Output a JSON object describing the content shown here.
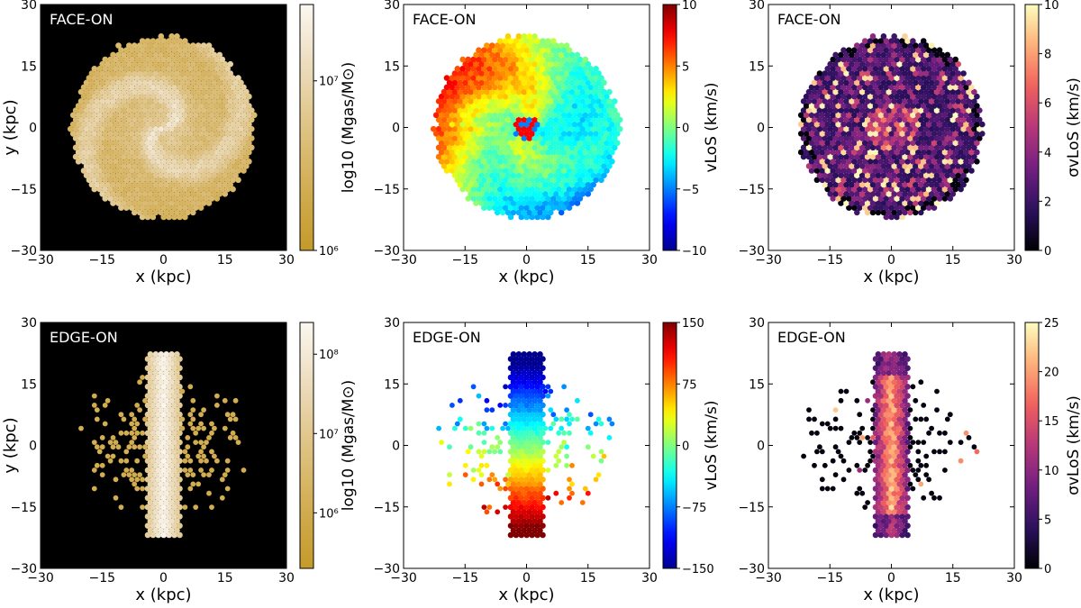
{
  "chart_data": [
    {
      "type": "heatmap",
      "quantity": "mass",
      "projection": "face-on",
      "label": "FACE-ON",
      "xlabel": "x (kpc)",
      "ylabel": "y (kpc)",
      "xlim": [
        -30,
        30
      ],
      "ylim": [
        -30,
        30
      ],
      "xticks": [
        "−30",
        "−15",
        "0",
        "15",
        "30"
      ],
      "yticks": [
        "30",
        "15",
        "0",
        "−15",
        "−30"
      ],
      "colorbar": {
        "label": "log10 (Mgas/M⊙)",
        "colormap": "gold-to-white",
        "range": [
          6.0,
          7.45
        ],
        "ticks": [
          {
            "text": "10⁷",
            "value": 7.0
          },
          {
            "text": "10⁶",
            "value": 6.0
          }
        ]
      }
    },
    {
      "type": "heatmap",
      "quantity": "velocity",
      "projection": "face-on",
      "label": "FACE-ON",
      "xlabel": "x (kpc)",
      "xlim": [
        -30,
        30
      ],
      "ylim": [
        -30,
        30
      ],
      "xticks": [
        "−30",
        "−15",
        "0",
        "15",
        "30"
      ],
      "yticks": [
        "30",
        "15",
        "0",
        "−15",
        "−30"
      ],
      "colorbar": {
        "label": "vLoS (km/s)",
        "colormap": "jet",
        "range": [
          -10,
          10
        ],
        "ticks": [
          {
            "text": "10",
            "value": 10
          },
          {
            "text": "5",
            "value": 5
          },
          {
            "text": "0",
            "value": 0
          },
          {
            "text": "−5",
            "value": -5
          },
          {
            "text": "−10",
            "value": -10
          }
        ]
      }
    },
    {
      "type": "heatmap",
      "quantity": "dispersion",
      "projection": "face-on",
      "label": "FACE-ON",
      "xlabel": "x (kpc)",
      "xlim": [
        -30,
        30
      ],
      "ylim": [
        -30,
        30
      ],
      "xticks": [
        "−30",
        "−15",
        "0",
        "15",
        "30"
      ],
      "yticks": [
        "30",
        "15",
        "0",
        "−15",
        "−30"
      ],
      "colorbar": {
        "label": "σvLoS (km/s)",
        "colormap": "magma",
        "range": [
          0,
          10
        ],
        "ticks": [
          {
            "text": "10",
            "value": 10
          },
          {
            "text": "8",
            "value": 8
          },
          {
            "text": "6",
            "value": 6
          },
          {
            "text": "4",
            "value": 4
          },
          {
            "text": "2",
            "value": 2
          },
          {
            "text": "0",
            "value": 0
          }
        ]
      }
    },
    {
      "type": "heatmap",
      "quantity": "mass",
      "projection": "edge-on",
      "label": "EDGE-ON",
      "xlabel": "x (kpc)",
      "ylabel": "y (kpc)",
      "xlim": [
        -30,
        30
      ],
      "ylim": [
        -30,
        30
      ],
      "xticks": [
        "−30",
        "−15",
        "0",
        "15",
        "30"
      ],
      "yticks": [
        "30",
        "15",
        "0",
        "−15",
        "−30"
      ],
      "colorbar": {
        "label": "log10 (Mgas/M⊙)",
        "colormap": "gold-to-white",
        "range": [
          5.3,
          8.4
        ],
        "ticks": [
          {
            "text": "10⁸",
            "value": 8.0
          },
          {
            "text": "10⁷",
            "value": 7.0
          },
          {
            "text": "10⁶",
            "value": 6.0
          }
        ]
      }
    },
    {
      "type": "heatmap",
      "quantity": "velocity",
      "projection": "edge-on",
      "label": "EDGE-ON",
      "xlabel": "x (kpc)",
      "xlim": [
        -30,
        30
      ],
      "ylim": [
        -30,
        30
      ],
      "xticks": [
        "−30",
        "−15",
        "0",
        "15",
        "30"
      ],
      "yticks": [
        "30",
        "15",
        "0",
        "−15",
        "−30"
      ],
      "colorbar": {
        "label": "vLoS (km/s)",
        "colormap": "jet",
        "range": [
          -150,
          150
        ],
        "ticks": [
          {
            "text": "150",
            "value": 150
          },
          {
            "text": "75",
            "value": 75
          },
          {
            "text": "0",
            "value": 0
          },
          {
            "text": "−75",
            "value": -75
          },
          {
            "text": "−150",
            "value": -150
          }
        ]
      }
    },
    {
      "type": "heatmap",
      "quantity": "dispersion",
      "projection": "edge-on",
      "label": "EDGE-ON",
      "xlabel": "x (kpc)",
      "xlim": [
        -30,
        30
      ],
      "ylim": [
        -30,
        30
      ],
      "xticks": [
        "−30",
        "−15",
        "0",
        "15",
        "30"
      ],
      "yticks": [
        "30",
        "15",
        "0",
        "−15",
        "−30"
      ],
      "colorbar": {
        "label": "σvLoS (km/s)",
        "colormap": "magma",
        "range": [
          0,
          25
        ],
        "ticks": [
          {
            "text": "25",
            "value": 25
          },
          {
            "text": "20",
            "value": 20
          },
          {
            "text": "15",
            "value": 15
          },
          {
            "text": "10",
            "value": 10
          },
          {
            "text": "5",
            "value": 5
          },
          {
            "text": "0",
            "value": 0
          }
        ]
      }
    }
  ],
  "colormaps": {
    "gold-to-white": [
      "#c49a2a",
      "#d2ad52",
      "#dfc384",
      "#ecdcbc",
      "#fbf7f0"
    ],
    "jet": [
      "#00008f",
      "#0000ff",
      "#0080ff",
      "#00ffff",
      "#80ff80",
      "#ffff00",
      "#ff8000",
      "#ff0000",
      "#800000"
    ],
    "magma": [
      "#000004",
      "#2c115f",
      "#721f81",
      "#b73779",
      "#f1605d",
      "#feb078",
      "#fcfdbf"
    ]
  },
  "styles": {
    "background_dark": "#000000",
    "frame": "#000000"
  }
}
